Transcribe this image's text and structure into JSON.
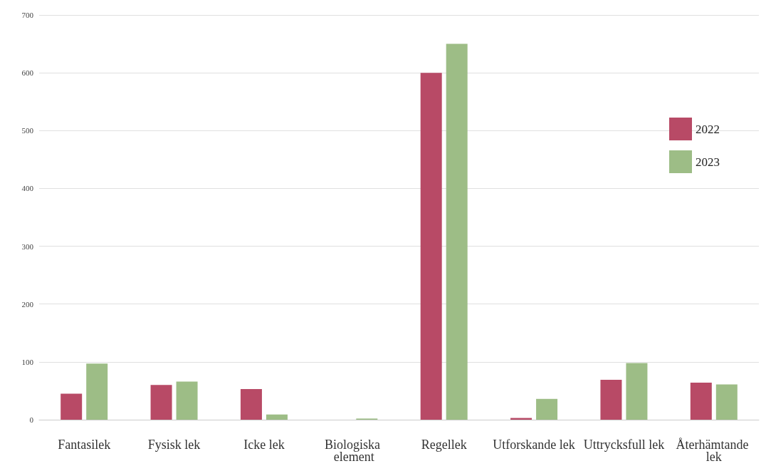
{
  "chart_data": {
    "type": "bar",
    "categories": [
      "Fantasilek",
      "Fysisk lek",
      "Icke lek",
      "Biologiska element",
      "Regellek",
      "Utforskande lek",
      "Uttrycksfull lek",
      "Återhämtande lek"
    ],
    "series": [
      {
        "name": "2022",
        "color": "#b84a66",
        "values": [
          45,
          60,
          53,
          0,
          600,
          3,
          69,
          64
        ]
      },
      {
        "name": "2023",
        "color": "#9dbd86",
        "values": [
          97,
          66,
          9,
          2,
          650,
          36,
          98,
          61
        ]
      }
    ],
    "ylim": [
      0,
      700
    ],
    "yticks": [
      0,
      100,
      200,
      300,
      400,
      500,
      600,
      700
    ],
    "grid": "y",
    "legend": "right"
  }
}
